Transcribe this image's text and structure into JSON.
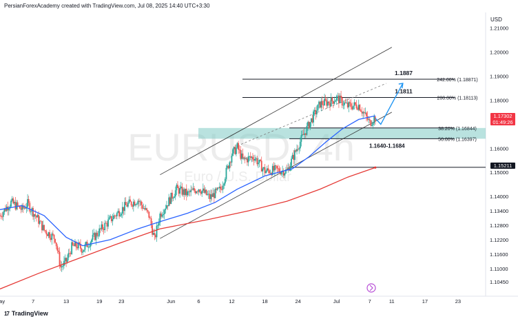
{
  "header": {
    "credit": "PersianForexAcademy created with TradingView.com, Jul 08, 2025 14:40 UTC+3:30"
  },
  "footer": {
    "brand": "TradingView",
    "logo": "tv-logo-icon"
  },
  "watermark": {
    "symbol": "EURUSD, 4h",
    "description": "Euro / U.S. Dollar"
  },
  "colors": {
    "up_candle": "#26a69a",
    "down_candle": "#ef5350",
    "ma_fast": "#2962ff",
    "ma_slow": "#e53935",
    "zone": "#80cbc4",
    "channel": "#333333",
    "projection": "#2196f3",
    "current_price_tag": "#f23645",
    "level_tag": "#131722"
  },
  "current_price": {
    "value": "1.17302",
    "countdown": "01:49:26"
  },
  "level_tag": {
    "value": "1.15211"
  },
  "chart_data": {
    "type": "candlestick",
    "symbol": "EURUSD",
    "timeframe": "4h",
    "y_axis": {
      "unit": "USD",
      "range": [
        1.0985,
        1.2165
      ],
      "ticks": [
        "1.21000",
        "1.20000",
        "1.19000",
        "1.18000",
        "1.17302",
        "1.16000",
        "1.15211",
        "1.15000",
        "1.14000",
        "1.13400",
        "1.12800",
        "1.12200",
        "1.11600",
        "1.11000",
        "1.10450"
      ]
    },
    "x_axis": {
      "labels": [
        "May",
        "7",
        "13",
        "19",
        "23",
        "Jun",
        "6",
        "12",
        "18",
        "24",
        "Jul",
        "7",
        "11",
        "17",
        "23"
      ],
      "range": [
        "2025-05-01",
        "2025-07-28"
      ]
    },
    "close_path": [
      [
        "2025-05-01",
        1.132
      ],
      [
        "2025-05-02",
        1.135
      ],
      [
        "2025-05-03",
        1.1375
      ],
      [
        "2025-05-05",
        1.1345
      ],
      [
        "2025-05-06",
        1.137
      ],
      [
        "2025-05-08",
        1.13
      ],
      [
        "2025-05-09",
        1.126
      ],
      [
        "2025-05-11",
        1.1225
      ],
      [
        "2025-05-12",
        1.1105
      ],
      [
        "2025-05-13",
        1.113
      ],
      [
        "2025-05-14",
        1.119
      ],
      [
        "2025-05-15",
        1.1195
      ],
      [
        "2025-05-16",
        1.118
      ],
      [
        "2025-05-18",
        1.123
      ],
      [
        "2025-05-20",
        1.128
      ],
      [
        "2025-05-22",
        1.1325
      ],
      [
        "2025-05-24",
        1.1365
      ],
      [
        "2025-05-26",
        1.1385
      ],
      [
        "2025-05-28",
        1.132
      ],
      [
        "2025-05-29",
        1.122
      ],
      [
        "2025-05-30",
        1.1325
      ],
      [
        "2025-06-02",
        1.143
      ],
      [
        "2025-06-04",
        1.141
      ],
      [
        "2025-06-06",
        1.1435
      ],
      [
        "2025-06-08",
        1.1395
      ],
      [
        "2025-06-10",
        1.143
      ],
      [
        "2025-06-12",
        1.1575
      ],
      [
        "2025-06-13",
        1.1605
      ],
      [
        "2025-06-14",
        1.155
      ],
      [
        "2025-06-16",
        1.1565
      ],
      [
        "2025-06-18",
        1.1505
      ],
      [
        "2025-06-20",
        1.151
      ],
      [
        "2025-06-22",
        1.1505
      ],
      [
        "2025-06-24",
        1.161
      ],
      [
        "2025-06-26",
        1.17
      ],
      [
        "2025-06-28",
        1.1785
      ],
      [
        "2025-06-30",
        1.1795
      ],
      [
        "2025-07-01",
        1.181
      ],
      [
        "2025-07-03",
        1.1775
      ],
      [
        "2025-07-05",
        1.178
      ],
      [
        "2025-07-07",
        1.1705
      ],
      [
        "2025-07-08",
        1.173
      ]
    ],
    "series": [
      {
        "name": "",
        "points": [
          [
            "2025-05-01",
            1.1345
          ],
          [
            "2025-05-05",
            1.1362
          ],
          [
            "2025-05-09",
            1.132
          ],
          [
            "2025-05-13",
            1.123
          ],
          [
            "2025-05-16",
            1.1195
          ],
          [
            "2025-05-21",
            1.122
          ],
          [
            "2025-05-26",
            1.1265
          ],
          [
            "2025-05-30",
            1.1295
          ],
          [
            "2025-06-04",
            1.133
          ],
          [
            "2025-06-09",
            1.1375
          ],
          [
            "2025-06-13",
            1.143
          ],
          [
            "2025-06-18",
            1.1485
          ],
          [
            "2025-06-23",
            1.1515
          ],
          [
            "2025-06-26",
            1.1565
          ],
          [
            "2025-06-29",
            1.1625
          ],
          [
            "2025-07-02",
            1.168
          ],
          [
            "2025-07-05",
            1.172
          ],
          [
            "2025-07-08",
            1.1735
          ]
        ]
      },
      {
        "name": "",
        "points": [
          [
            "2025-05-01",
            1.1015
          ],
          [
            "2025-05-08",
            1.108
          ],
          [
            "2025-05-15",
            1.114
          ],
          [
            "2025-05-22",
            1.12
          ],
          [
            "2025-05-30",
            1.1265
          ],
          [
            "2025-06-08",
            1.1305
          ],
          [
            "2025-06-15",
            1.134
          ],
          [
            "2025-06-22",
            1.138
          ],
          [
            "2025-06-28",
            1.143
          ],
          [
            "2025-07-03",
            1.148
          ],
          [
            "2025-07-08",
            1.152
          ]
        ]
      }
    ],
    "levels": [
      {
        "label": "242.00% (1.18871)",
        "value": 1.18871,
        "callout": "1.1887"
      },
      {
        "label": "200.00% (1.18113)",
        "value": 1.18113,
        "callout": "1.1811"
      },
      {
        "label": "38.20% (1.16844)",
        "value": 1.16844
      },
      {
        "label": "50.00% (1.16397)",
        "value": 1.16397
      }
    ],
    "zone": {
      "label": "1.1640-1.1684",
      "from": 1.16397,
      "to": 1.16844
    },
    "horizontal_line": {
      "value": 1.15211
    },
    "channel": {
      "lower": [
        [
          "2025-05-30",
          1.1225
        ],
        [
          "2025-07-11",
          1.175
        ]
      ],
      "upper": [
        [
          "2025-05-30",
          1.149
        ],
        [
          "2025-07-11",
          1.202
        ]
      ],
      "mid": [
        [
          "2025-06-13",
          1.161
        ],
        [
          "2025-07-10",
          1.187
        ]
      ]
    },
    "projection": [
      [
        "2025-07-08",
        1.1725
      ],
      [
        "2025-07-09",
        1.17
      ],
      [
        "2025-07-13",
        1.187
      ]
    ]
  }
}
